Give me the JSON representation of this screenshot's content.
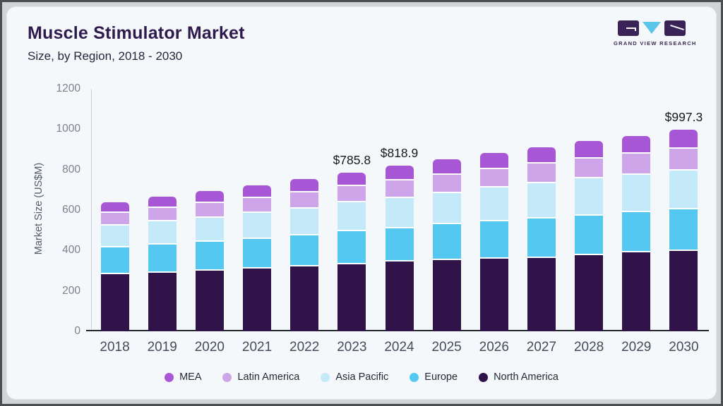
{
  "header": {
    "title": "Muscle Stimulator Market",
    "subtitle": "Size, by Region, 2018 - 2030"
  },
  "logo": {
    "text": "GRAND VIEW RESEARCH"
  },
  "chart_data": {
    "type": "bar",
    "stacked": true,
    "title": "Muscle Stimulator Market Size, by Region, 2018 - 2030",
    "ylabel": "Market Size (US$M)",
    "xlabel": "",
    "ylim": [
      0,
      1200
    ],
    "yticks": [
      0,
      200,
      400,
      600,
      800,
      1000,
      1200
    ],
    "grid": false,
    "legend_position": "bottom",
    "categories": [
      "2018",
      "2019",
      "2020",
      "2021",
      "2022",
      "2023",
      "2024",
      "2025",
      "2026",
      "2027",
      "2028",
      "2029",
      "2030"
    ],
    "series": [
      {
        "name": "North America",
        "color": "#2f1349",
        "values": [
          282,
          290,
          300,
          312,
          322,
          332,
          344,
          352,
          358,
          364,
          377,
          390,
          399
        ]
      },
      {
        "name": "Europe",
        "color": "#55c8f2",
        "values": [
          132,
          138,
          142,
          146,
          151,
          163,
          166,
          178,
          186,
          194,
          196,
          198,
          205
        ]
      },
      {
        "name": "Asia Pacific",
        "color": "#c4e9f9",
        "values": [
          110,
          116,
          121,
          128,
          134,
          142,
          150,
          155,
          166,
          175,
          183,
          186,
          192
        ]
      },
      {
        "name": "Latin America",
        "color": "#cfa5e9",
        "values": [
          61,
          66,
          72,
          74,
          80,
          81,
          86,
          90,
          93,
          97,
          98,
          106,
          108
        ]
      },
      {
        "name": "MEA",
        "color": "#a757d6",
        "values": [
          52,
          56,
          58,
          62,
          66,
          67.8,
          72.9,
          76,
          78,
          80,
          87,
          88,
          93.3
        ]
      }
    ],
    "totals": [
      637,
      666,
      693,
      722,
      753,
      785.8,
      818.9,
      851,
      881,
      910,
      941,
      968,
      997.3
    ],
    "annotations": [
      {
        "category": "2023",
        "text": "$785.8"
      },
      {
        "category": "2024",
        "text": "$818.9"
      },
      {
        "category": "2030",
        "text": "$997.3"
      }
    ]
  }
}
